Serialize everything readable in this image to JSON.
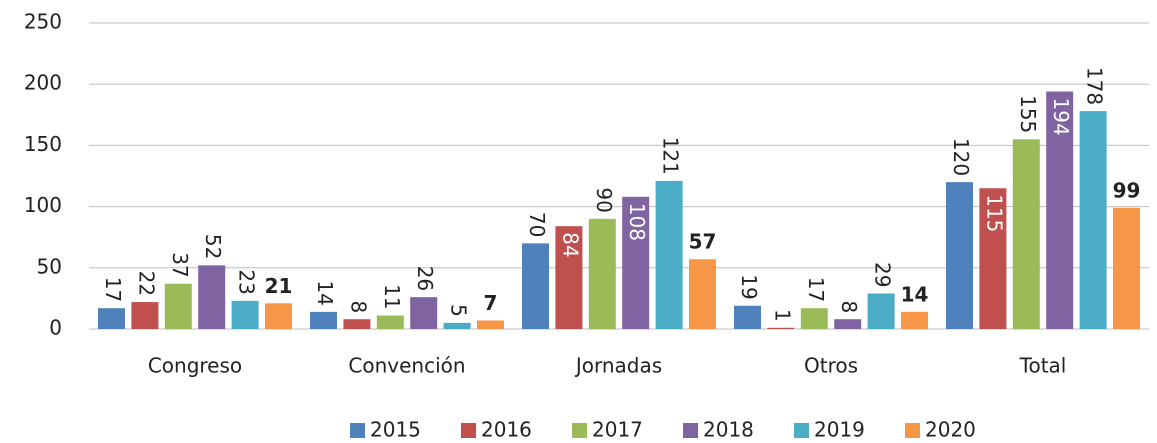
{
  "chart_data": {
    "type": "bar",
    "categories": [
      "Congreso",
      "Convención",
      "Jornadas",
      "Otros",
      "Total"
    ],
    "series": [
      {
        "name": "2015",
        "color": "#4f81bd",
        "values": [
          17,
          14,
          70,
          19,
          120
        ]
      },
      {
        "name": "2016",
        "color": "#c0504d",
        "values": [
          22,
          8,
          84,
          1,
          115
        ]
      },
      {
        "name": "2017",
        "color": "#9bbb59",
        "values": [
          37,
          11,
          90,
          17,
          155
        ]
      },
      {
        "name": "2018",
        "color": "#8064a2",
        "values": [
          52,
          26,
          108,
          8,
          194
        ]
      },
      {
        "name": "2019",
        "color": "#4bacc6",
        "values": [
          23,
          5,
          121,
          29,
          178
        ]
      },
      {
        "name": "2020",
        "color": "#f79646",
        "values": [
          21,
          7,
          57,
          14,
          99
        ]
      }
    ],
    "ylim": [
      0,
      250
    ],
    "yticks": [
      0,
      50,
      100,
      150,
      200,
      250
    ],
    "grid": true,
    "legend": "bottom"
  }
}
